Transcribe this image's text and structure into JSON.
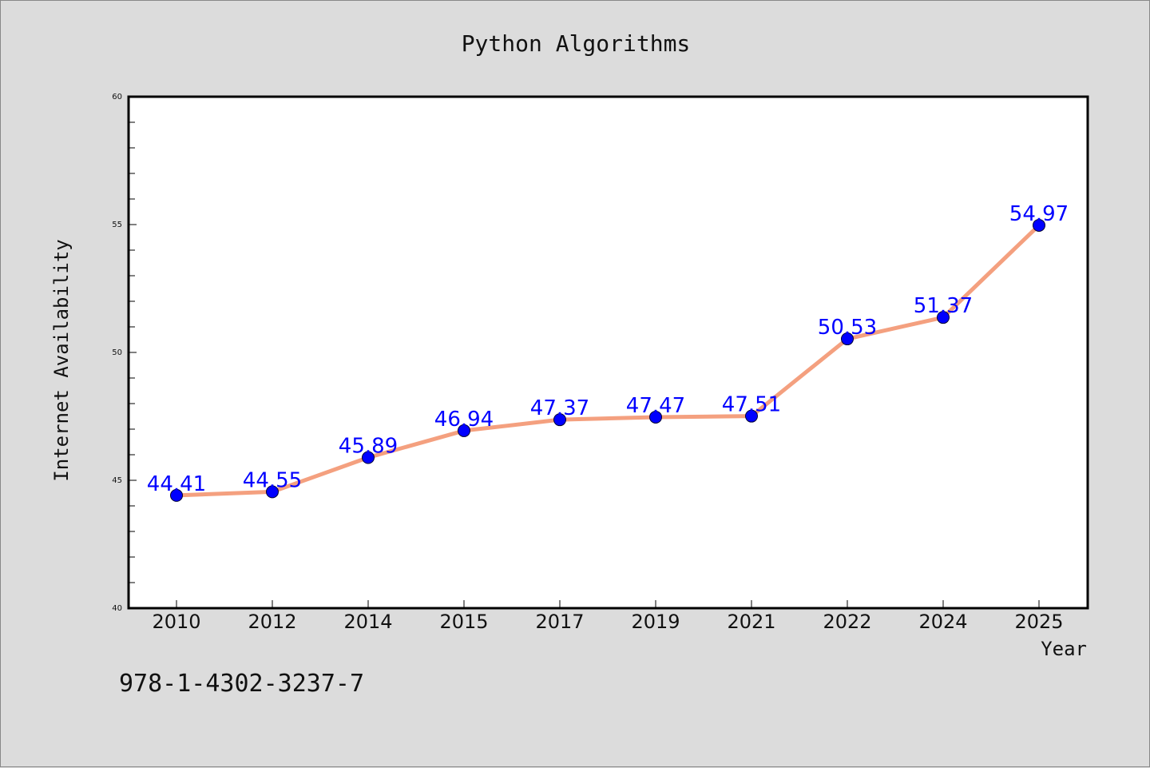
{
  "chart_data": {
    "type": "line",
    "title": "Python Algorithms",
    "xlabel": "Year",
    "ylabel": "Internet Availability",
    "categories": [
      "2010",
      "2012",
      "2014",
      "2015",
      "2017",
      "2019",
      "2021",
      "2022",
      "2024",
      "2025"
    ],
    "series": [
      {
        "values": [
          44.41,
          44.55,
          45.89,
          46.94,
          47.37,
          47.47,
          47.51,
          50.53,
          51.37,
          54.97
        ],
        "labels": [
          "44.41",
          "44.55",
          "45.89",
          "46.94",
          "47.37",
          "47.47",
          "47.51",
          "50.53",
          "51.37",
          "54.97"
        ]
      }
    ],
    "ylim": [
      40,
      60
    ],
    "yticks": [
      "40",
      "45",
      "50",
      "55",
      "60"
    ],
    "grid": false,
    "colors": {
      "line": "#f4a07f",
      "marker": "#0000ff",
      "label": "#0000ff",
      "plot_bg": "#ffffff",
      "page_bg": "#dcdcdc"
    }
  },
  "annotation": "978-1-4302-3237-7"
}
